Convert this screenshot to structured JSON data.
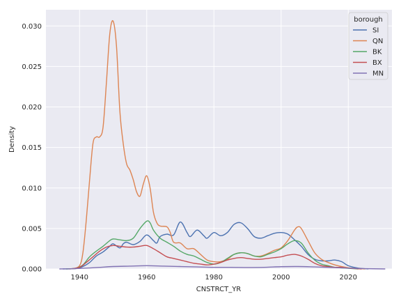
{
  "chart_data": {
    "type": "line",
    "title": "",
    "xlabel": "CNSTRCT_YR",
    "ylabel": "Density",
    "xlim": [
      1930,
      2033
    ],
    "ylim": [
      0,
      0.032
    ],
    "x_ticks": [
      1940,
      1960,
      1980,
      2000,
      2020
    ],
    "y_ticks": [
      0.0,
      0.005,
      0.01,
      0.015,
      0.02,
      0.025,
      0.03
    ],
    "y_tick_labels": [
      "0.000",
      "0.005",
      "0.010",
      "0.015",
      "0.020",
      "0.025",
      "0.030"
    ],
    "grid": true,
    "legend": {
      "title": "borough",
      "placement": "top-right"
    },
    "series": [
      {
        "name": "SI",
        "color": "#4c72b0",
        "points": [
          [
            1935,
            0
          ],
          [
            1939,
            5e-05
          ],
          [
            1941,
            0.0003
          ],
          [
            1943,
            0.0008
          ],
          [
            1945,
            0.0016
          ],
          [
            1947,
            0.0021
          ],
          [
            1949,
            0.0028
          ],
          [
            1950,
            0.0031
          ],
          [
            1952,
            0.0026
          ],
          [
            1953,
            0.0031
          ],
          [
            1954,
            0.0033
          ],
          [
            1956,
            0.003
          ],
          [
            1958,
            0.0034
          ],
          [
            1960,
            0.0042
          ],
          [
            1962,
            0.0035
          ],
          [
            1963,
            0.0032
          ],
          [
            1964,
            0.004
          ],
          [
            1966,
            0.0043
          ],
          [
            1968,
            0.0042
          ],
          [
            1970,
            0.0058
          ],
          [
            1972,
            0.0045
          ],
          [
            1973,
            0.004
          ],
          [
            1975,
            0.0048
          ],
          [
            1977,
            0.0041
          ],
          [
            1978,
            0.0038
          ],
          [
            1980,
            0.0045
          ],
          [
            1982,
            0.0041
          ],
          [
            1984,
            0.0045
          ],
          [
            1986,
            0.0055
          ],
          [
            1988,
            0.0057
          ],
          [
            1990,
            0.005
          ],
          [
            1992,
            0.004
          ],
          [
            1994,
            0.0038
          ],
          [
            1996,
            0.0041
          ],
          [
            1998,
            0.0044
          ],
          [
            2000,
            0.0045
          ],
          [
            2002,
            0.0043
          ],
          [
            2004,
            0.0036
          ],
          [
            2006,
            0.0028
          ],
          [
            2008,
            0.0018
          ],
          [
            2010,
            0.0012
          ],
          [
            2012,
            0.001
          ],
          [
            2014,
            0.001
          ],
          [
            2016,
            0.0011
          ],
          [
            2018,
            0.0009
          ],
          [
            2020,
            0.0004
          ],
          [
            2023,
            0.0001
          ],
          [
            2026,
            0
          ]
        ]
      },
      {
        "name": "QN",
        "color": "#dd8452",
        "points": [
          [
            1938,
            0
          ],
          [
            1940,
            0.0004
          ],
          [
            1941,
            0.002
          ],
          [
            1942,
            0.006
          ],
          [
            1943,
            0.011
          ],
          [
            1944,
            0.0155
          ],
          [
            1945,
            0.0163
          ],
          [
            1946,
            0.0163
          ],
          [
            1947,
            0.0175
          ],
          [
            1948,
            0.023
          ],
          [
            1949,
            0.029
          ],
          [
            1950,
            0.0306
          ],
          [
            1951,
            0.0275
          ],
          [
            1952,
            0.0195
          ],
          [
            1953,
            0.0155
          ],
          [
            1954,
            0.013
          ],
          [
            1955,
            0.0122
          ],
          [
            1956,
            0.011
          ],
          [
            1957,
            0.0095
          ],
          [
            1958,
            0.009
          ],
          [
            1959,
            0.0105
          ],
          [
            1960,
            0.0115
          ],
          [
            1961,
            0.01
          ],
          [
            1962,
            0.007
          ],
          [
            1963,
            0.0057
          ],
          [
            1964,
            0.0053
          ],
          [
            1966,
            0.0052
          ],
          [
            1967,
            0.0045
          ],
          [
            1968,
            0.0033
          ],
          [
            1970,
            0.0032
          ],
          [
            1972,
            0.0025
          ],
          [
            1974,
            0.0025
          ],
          [
            1976,
            0.0018
          ],
          [
            1978,
            0.0011
          ],
          [
            1980,
            0.0009
          ],
          [
            1982,
            0.0009
          ],
          [
            1984,
            0.0012
          ],
          [
            1986,
            0.0018
          ],
          [
            1988,
            0.002
          ],
          [
            1990,
            0.0019
          ],
          [
            1992,
            0.0016
          ],
          [
            1994,
            0.0016
          ],
          [
            1996,
            0.0019
          ],
          [
            1998,
            0.0023
          ],
          [
            2000,
            0.0026
          ],
          [
            2002,
            0.0035
          ],
          [
            2004,
            0.0048
          ],
          [
            2005,
            0.0052
          ],
          [
            2006,
            0.005
          ],
          [
            2008,
            0.0035
          ],
          [
            2010,
            0.002
          ],
          [
            2012,
            0.0012
          ],
          [
            2014,
            0.0008
          ],
          [
            2016,
            0.0005
          ],
          [
            2018,
            0.0003
          ],
          [
            2021,
            0.0001
          ],
          [
            2025,
            0
          ]
        ]
      },
      {
        "name": "BK",
        "color": "#55a868",
        "points": [
          [
            1936,
            0
          ],
          [
            1939,
            0.0001
          ],
          [
            1941,
            0.0005
          ],
          [
            1943,
            0.0015
          ],
          [
            1945,
            0.0022
          ],
          [
            1947,
            0.0028
          ],
          [
            1949,
            0.0035
          ],
          [
            1950,
            0.0037
          ],
          [
            1952,
            0.0036
          ],
          [
            1954,
            0.0035
          ],
          [
            1956,
            0.0038
          ],
          [
            1958,
            0.005
          ],
          [
            1960,
            0.0059
          ],
          [
            1961,
            0.0057
          ],
          [
            1962,
            0.0048
          ],
          [
            1964,
            0.0038
          ],
          [
            1966,
            0.0033
          ],
          [
            1968,
            0.0028
          ],
          [
            1970,
            0.0022
          ],
          [
            1972,
            0.0018
          ],
          [
            1974,
            0.0016
          ],
          [
            1976,
            0.0012
          ],
          [
            1978,
            0.0008
          ],
          [
            1980,
            0.0006
          ],
          [
            1982,
            0.0008
          ],
          [
            1984,
            0.0013
          ],
          [
            1986,
            0.0018
          ],
          [
            1988,
            0.002
          ],
          [
            1990,
            0.0019
          ],
          [
            1992,
            0.0016
          ],
          [
            1994,
            0.0015
          ],
          [
            1996,
            0.0018
          ],
          [
            1998,
            0.0021
          ],
          [
            2000,
            0.0025
          ],
          [
            2002,
            0.0031
          ],
          [
            2004,
            0.0035
          ],
          [
            2006,
            0.0032
          ],
          [
            2008,
            0.002
          ],
          [
            2010,
            0.0011
          ],
          [
            2012,
            0.0006
          ],
          [
            2014,
            0.0004
          ],
          [
            2016,
            0.0002
          ],
          [
            2019,
            0.0001
          ],
          [
            2023,
            0
          ]
        ]
      },
      {
        "name": "BX",
        "color": "#c44e52",
        "points": [
          [
            1937,
            0
          ],
          [
            1940,
            0.0002
          ],
          [
            1942,
            0.0008
          ],
          [
            1944,
            0.0015
          ],
          [
            1946,
            0.0022
          ],
          [
            1948,
            0.0027
          ],
          [
            1950,
            0.0029
          ],
          [
            1952,
            0.0028
          ],
          [
            1954,
            0.0027
          ],
          [
            1956,
            0.0027
          ],
          [
            1958,
            0.0028
          ],
          [
            1960,
            0.0029
          ],
          [
            1962,
            0.0025
          ],
          [
            1964,
            0.002
          ],
          [
            1966,
            0.0015
          ],
          [
            1968,
            0.0013
          ],
          [
            1970,
            0.0011
          ],
          [
            1972,
            0.0009
          ],
          [
            1974,
            0.0007
          ],
          [
            1976,
            0.0006
          ],
          [
            1978,
            0.0005
          ],
          [
            1980,
            0.0006
          ],
          [
            1982,
            0.0008
          ],
          [
            1984,
            0.0011
          ],
          [
            1986,
            0.0013
          ],
          [
            1988,
            0.0014
          ],
          [
            1990,
            0.0013
          ],
          [
            1992,
            0.0012
          ],
          [
            1994,
            0.0012
          ],
          [
            1996,
            0.0013
          ],
          [
            1998,
            0.0014
          ],
          [
            2000,
            0.0015
          ],
          [
            2002,
            0.0017
          ],
          [
            2004,
            0.0018
          ],
          [
            2006,
            0.0016
          ],
          [
            2008,
            0.0012
          ],
          [
            2010,
            0.0007
          ],
          [
            2012,
            0.0004
          ],
          [
            2014,
            0.0003
          ],
          [
            2016,
            0.0002
          ],
          [
            2018,
            0.0002
          ],
          [
            2020,
            0.0001
          ],
          [
            2024,
            0
          ]
        ]
      },
      {
        "name": "MN",
        "color": "#8172b3",
        "points": [
          [
            1934,
            0
          ],
          [
            1938,
            3e-05
          ],
          [
            1942,
            0.0001
          ],
          [
            1946,
            0.0002
          ],
          [
            1950,
            0.0003
          ],
          [
            1955,
            0.00035
          ],
          [
            1960,
            0.0004
          ],
          [
            1965,
            0.00035
          ],
          [
            1970,
            0.0003
          ],
          [
            1975,
            0.00025
          ],
          [
            1980,
            0.0002
          ],
          [
            1985,
            0.0002
          ],
          [
            1990,
            0.00018
          ],
          [
            1995,
            0.0002
          ],
          [
            2000,
            0.00028
          ],
          [
            2005,
            0.0003
          ],
          [
            2010,
            0.00025
          ],
          [
            2015,
            0.00018
          ],
          [
            2020,
            0.0001
          ],
          [
            2025,
            4e-05
          ],
          [
            2031,
            0
          ]
        ]
      }
    ]
  }
}
